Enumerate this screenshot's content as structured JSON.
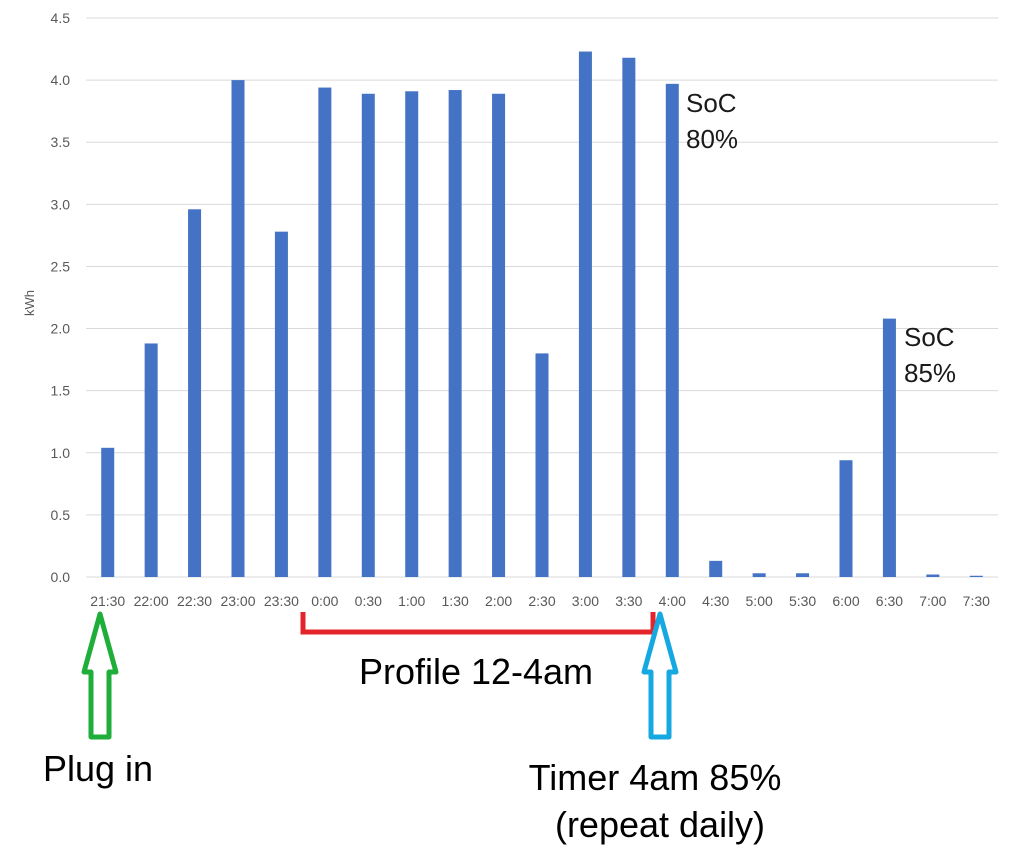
{
  "chart_data": {
    "type": "bar",
    "ylabel": "kWh",
    "xlabel": "",
    "title": "",
    "ylim": [
      0,
      4.5
    ],
    "yticks": [
      "0.0",
      "0.5",
      "1.0",
      "1.5",
      "2.0",
      "2.5",
      "3.0",
      "3.5",
      "4.0",
      "4.5"
    ],
    "categories": [
      "21:30",
      "22:00",
      "22:30",
      "23:00",
      "23:30",
      "0:00",
      "0:30",
      "1:00",
      "1:30",
      "2:00",
      "2:30",
      "3:00",
      "3:30",
      "4:00",
      "4:30",
      "5:00",
      "5:30",
      "6:00",
      "6:30",
      "7:00",
      "7:30"
    ],
    "values": [
      1.04,
      1.88,
      2.96,
      4.0,
      2.78,
      3.94,
      3.89,
      3.91,
      3.92,
      3.89,
      1.8,
      4.23,
      4.18,
      3.97,
      0.13,
      0.03,
      0.03,
      0.94,
      2.08,
      0.02,
      0.01
    ],
    "bar_color": "#4472C4",
    "grid": true,
    "legend": "none"
  },
  "annotations": {
    "soc_80": [
      "SoC",
      "80%"
    ],
    "soc_85": [
      "SoC",
      "85%"
    ],
    "profile_label": "Profile 12-4am",
    "plug_in_label": "Plug in",
    "timer_label": [
      "Timer 4am 85%",
      "(repeat daily)"
    ]
  },
  "colors": {
    "grid": "#d9d9d9",
    "profile_bracket": "#e3242b",
    "plug_in_arrow": "#1fae3a",
    "timer_arrow": "#16a9e1"
  }
}
